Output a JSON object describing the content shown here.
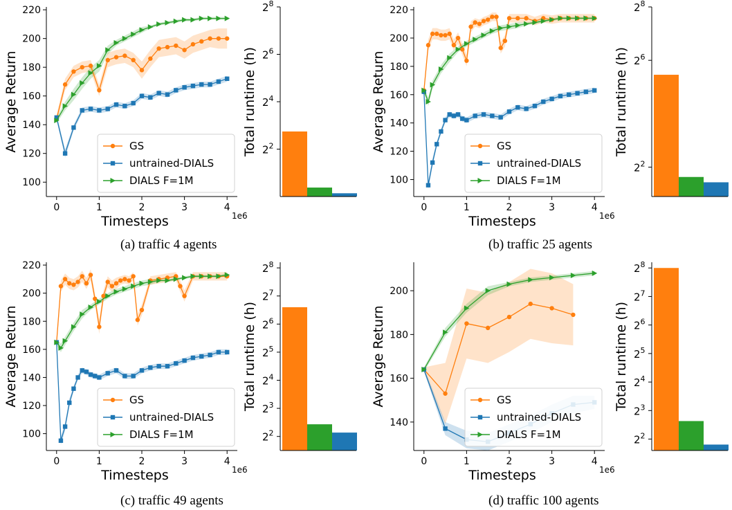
{
  "colors": {
    "gs": "#ff7f0e",
    "untrained": "#1f77b4",
    "dials": "#2ca02c"
  },
  "legend": [
    "GS",
    "untrained-DIALS",
    "DIALS F=1M"
  ],
  "xlabel": "Timesteps",
  "ylabel": "Average Return",
  "bar_ylabel": "Total runtime (h)",
  "x_multiplier": "1e6",
  "chart_data": [
    {
      "type": "line",
      "caption": "(a) traffic 4 agents",
      "xlim": [
        0,
        4
      ],
      "ylim": [
        90,
        222
      ],
      "xticks": [
        0,
        1,
        2,
        3,
        4
      ],
      "yticks": [
        100,
        120,
        140,
        160,
        180,
        200,
        220
      ],
      "series": [
        {
          "name": "GS",
          "color_key": "gs",
          "marker": "circle",
          "x": [
            0,
            0.2,
            0.4,
            0.6,
            0.8,
            1.0,
            1.2,
            1.4,
            1.6,
            1.8,
            2.0,
            2.2,
            2.4,
            2.6,
            2.8,
            3.0,
            3.2,
            3.4,
            3.6,
            3.8,
            4.0
          ],
          "y": [
            144,
            168,
            177,
            180,
            181,
            164,
            185,
            187,
            188,
            185,
            178,
            186,
            193,
            194,
            195,
            192,
            196,
            198,
            200,
            200,
            200
          ],
          "band": [
            3,
            4,
            4,
            4,
            4,
            4,
            5,
            5,
            5,
            5,
            6,
            6,
            6,
            6,
            6,
            6,
            6,
            6,
            6,
            7,
            7
          ]
        },
        {
          "name": "untrained-DIALS",
          "color_key": "untrained",
          "marker": "square",
          "x": [
            0,
            0.2,
            0.4,
            0.6,
            0.8,
            1.0,
            1.2,
            1.4,
            1.6,
            1.8,
            2.0,
            2.2,
            2.4,
            2.6,
            2.8,
            3.0,
            3.2,
            3.4,
            3.6,
            3.8,
            4.0
          ],
          "y": [
            145,
            120,
            138,
            150,
            151,
            150,
            151,
            154,
            153,
            155,
            160,
            159,
            162,
            161,
            164,
            166,
            167,
            168,
            168,
            170,
            172
          ],
          "band": [
            2,
            3,
            2,
            2,
            2,
            2,
            2,
            2,
            2,
            2,
            2,
            2,
            2,
            2,
            2,
            2,
            2,
            2,
            2,
            2,
            2
          ]
        },
        {
          "name": "DIALS F=1M",
          "color_key": "dials",
          "marker": "triangle",
          "x": [
            0,
            0.2,
            0.4,
            0.6,
            0.8,
            1.0,
            1.2,
            1.4,
            1.6,
            1.8,
            2.0,
            2.2,
            2.4,
            2.6,
            2.8,
            3.0,
            3.2,
            3.4,
            3.6,
            3.8,
            4.0
          ],
          "y": [
            143,
            153,
            161,
            169,
            176,
            181,
            192,
            197,
            200,
            203,
            206,
            208,
            210,
            211,
            212,
            213,
            213,
            214,
            214,
            214,
            214
          ],
          "band": [
            2,
            3,
            4,
            4,
            4,
            4,
            3,
            2,
            2,
            2,
            2,
            1,
            1,
            1,
            1,
            1,
            1,
            1,
            1,
            1,
            1
          ]
        }
      ]
    },
    {
      "type": "bar",
      "ylabel": "Total runtime (h)",
      "log_base": 2,
      "ylim_exp": [
        0,
        8
      ],
      "ytick_exponents": [
        2,
        4,
        6,
        8
      ],
      "values": [
        6.7,
        1.3,
        1.1
      ],
      "color_keys": [
        "gs",
        "dials",
        "untrained"
      ]
    },
    {
      "type": "line",
      "caption": "(b) traffic 25 agents",
      "xlim": [
        0,
        4
      ],
      "ylim": [
        88,
        222
      ],
      "xticks": [
        0,
        1,
        2,
        3,
        4
      ],
      "yticks": [
        100,
        120,
        140,
        160,
        180,
        200,
        220
      ],
      "series": [
        {
          "name": "GS",
          "color_key": "gs",
          "marker": "circle",
          "x": [
            0,
            0.1,
            0.2,
            0.3,
            0.4,
            0.5,
            0.6,
            0.7,
            0.8,
            0.9,
            1.0,
            1.1,
            1.2,
            1.3,
            1.4,
            1.5,
            1.6,
            1.7,
            1.8,
            1.9,
            2.0,
            2.2,
            2.4,
            2.6,
            2.8,
            3.0,
            3.2,
            3.4,
            3.6,
            3.8,
            4.0
          ],
          "y": [
            163,
            195,
            203,
            203,
            202,
            202,
            203,
            195,
            200,
            192,
            184,
            208,
            211,
            210,
            212,
            213,
            215,
            215,
            193,
            198,
            214,
            214,
            214,
            212,
            214,
            213,
            214,
            214,
            214,
            214,
            214
          ],
          "band": [
            3,
            4,
            4,
            4,
            4,
            4,
            4,
            4,
            4,
            4,
            4,
            4,
            3,
            3,
            3,
            3,
            3,
            3,
            4,
            4,
            3,
            3,
            3,
            3,
            3,
            3,
            3,
            3,
            3,
            3,
            3
          ]
        },
        {
          "name": "untrained-DIALS",
          "color_key": "untrained",
          "marker": "square",
          "x": [
            0,
            0.1,
            0.2,
            0.3,
            0.4,
            0.5,
            0.6,
            0.7,
            0.8,
            0.9,
            1.0,
            1.2,
            1.4,
            1.6,
            1.8,
            2.0,
            2.2,
            2.4,
            2.6,
            2.8,
            3.0,
            3.2,
            3.4,
            3.6,
            3.8,
            4.0
          ],
          "y": [
            162,
            96,
            112,
            125,
            134,
            142,
            146,
            145,
            146,
            143,
            142,
            145,
            146,
            145,
            144,
            148,
            151,
            150,
            152,
            155,
            157,
            159,
            160,
            161,
            162,
            163
          ],
          "band": [
            2,
            3,
            3,
            2,
            2,
            2,
            2,
            2,
            2,
            2,
            2,
            2,
            2,
            2,
            2,
            2,
            2,
            2,
            2,
            2,
            2,
            2,
            2,
            2,
            2,
            2
          ]
        },
        {
          "name": "DIALS F=1M",
          "color_key": "dials",
          "marker": "triangle",
          "x": [
            0,
            0.1,
            0.2,
            0.4,
            0.6,
            0.8,
            1.0,
            1.2,
            1.4,
            1.6,
            1.8,
            2.0,
            2.2,
            2.4,
            2.6,
            2.8,
            3.0,
            3.2,
            3.4,
            3.6,
            3.8,
            4.0
          ],
          "y": [
            163,
            155,
            167,
            178,
            186,
            192,
            196,
            199,
            202,
            205,
            207,
            208,
            209,
            210,
            211,
            212,
            213,
            214,
            214,
            214,
            214,
            214
          ],
          "band": [
            2,
            3,
            3,
            3,
            3,
            2,
            2,
            2,
            2,
            2,
            2,
            2,
            2,
            1,
            1,
            1,
            1,
            1,
            1,
            1,
            1,
            1
          ]
        }
      ]
    },
    {
      "type": "bar",
      "ylabel": "Total runtime (h)",
      "log_base": 2,
      "ylim_exp": [
        0.9,
        8
      ],
      "ytick_exponents": [
        2,
        6,
        8
      ],
      "values": [
        44,
        3.1,
        2.7
      ],
      "color_keys": [
        "gs",
        "dials",
        "untrained"
      ]
    },
    {
      "type": "line",
      "caption": "(c) traffic 49 agents",
      "xlim": [
        0,
        4
      ],
      "ylim": [
        88,
        222
      ],
      "xticks": [
        0,
        1,
        2,
        3,
        4
      ],
      "yticks": [
        100,
        120,
        140,
        160,
        180,
        200,
        220
      ],
      "series": [
        {
          "name": "GS",
          "color_key": "gs",
          "marker": "circle",
          "x": [
            0,
            0.1,
            0.2,
            0.3,
            0.4,
            0.5,
            0.6,
            0.7,
            0.8,
            0.9,
            1.0,
            1.1,
            1.2,
            1.3,
            1.4,
            1.5,
            1.6,
            1.7,
            1.8,
            1.9,
            2.0,
            2.2,
            2.4,
            2.6,
            2.8,
            2.9,
            3.0,
            3.2,
            3.4,
            3.6,
            3.8,
            4.0
          ],
          "y": [
            165,
            205,
            210,
            207,
            206,
            208,
            212,
            207,
            213,
            196,
            176,
            198,
            208,
            205,
            207,
            209,
            210,
            209,
            212,
            181,
            188,
            209,
            210,
            211,
            212,
            205,
            198,
            212,
            212,
            212,
            212,
            212
          ],
          "band": [
            3,
            4,
            4,
            4,
            4,
            4,
            4,
            4,
            4,
            4,
            5,
            4,
            4,
            4,
            4,
            3,
            3,
            3,
            3,
            4,
            4,
            3,
            3,
            3,
            3,
            4,
            4,
            3,
            3,
            3,
            3,
            3
          ]
        },
        {
          "name": "untrained-DIALS",
          "color_key": "untrained",
          "marker": "square",
          "x": [
            0,
            0.1,
            0.2,
            0.3,
            0.4,
            0.5,
            0.6,
            0.7,
            0.8,
            0.9,
            1.0,
            1.2,
            1.4,
            1.6,
            1.8,
            2.0,
            2.2,
            2.4,
            2.6,
            2.8,
            3.0,
            3.2,
            3.4,
            3.6,
            3.8,
            4.0
          ],
          "y": [
            165,
            95,
            105,
            122,
            132,
            140,
            145,
            144,
            142,
            141,
            140,
            143,
            145,
            141,
            141,
            145,
            147,
            148,
            148,
            150,
            152,
            154,
            155,
            156,
            158,
            158
          ],
          "band": [
            2,
            3,
            3,
            3,
            2,
            2,
            2,
            2,
            2,
            2,
            2,
            2,
            2,
            2,
            2,
            2,
            2,
            2,
            2,
            2,
            2,
            2,
            2,
            2,
            2,
            2
          ]
        },
        {
          "name": "DIALS F=1M",
          "color_key": "dials",
          "marker": "triangle",
          "x": [
            0,
            0.1,
            0.2,
            0.4,
            0.6,
            0.8,
            1.0,
            1.2,
            1.4,
            1.6,
            1.8,
            2.0,
            2.2,
            2.4,
            2.6,
            2.8,
            3.0,
            3.2,
            3.4,
            3.6,
            3.8,
            4.0
          ],
          "y": [
            165,
            161,
            166,
            176,
            185,
            190,
            194,
            198,
            201,
            203,
            205,
            207,
            208,
            209,
            209,
            210,
            211,
            212,
            212,
            212,
            212,
            213
          ],
          "band": [
            2,
            3,
            3,
            3,
            3,
            2,
            2,
            2,
            2,
            2,
            2,
            2,
            2,
            1,
            1,
            1,
            1,
            1,
            1,
            1,
            1,
            1
          ]
        }
      ]
    },
    {
      "type": "bar",
      "ylabel": "Total runtime (h)",
      "log_base": 2,
      "ylim_exp": [
        1.5,
        8.2
      ],
      "ytick_exponents": [
        2,
        3,
        4,
        5,
        6,
        7,
        8
      ],
      "values": [
        97,
        5.4,
        4.4
      ],
      "color_keys": [
        "gs",
        "dials",
        "untrained"
      ]
    },
    {
      "type": "line",
      "caption": "(d) traffic 100 agents",
      "xlim": [
        0,
        4
      ],
      "ylim": [
        127,
        213
      ],
      "xticks": [
        0,
        1,
        2,
        3,
        4
      ],
      "yticks": [
        140,
        160,
        180,
        200
      ],
      "series": [
        {
          "name": "GS",
          "color_key": "gs",
          "marker": "circle",
          "x": [
            0,
            0.5,
            1.0,
            1.5,
            2.0,
            2.5,
            3.0,
            3.5
          ],
          "y": [
            164,
            153,
            185,
            183,
            188,
            194,
            192,
            189
          ],
          "band": [
            1,
            14,
            16,
            16,
            16,
            16,
            16,
            14
          ]
        },
        {
          "name": "untrained-DIALS",
          "color_key": "untrained",
          "marker": "square",
          "x": [
            0,
            0.5,
            1.0,
            1.5,
            2.0,
            2.5,
            3.0,
            3.5,
            4.0
          ],
          "y": [
            164,
            137,
            132,
            131,
            135,
            139,
            144,
            148,
            149
          ],
          "band": [
            1,
            3,
            4,
            4,
            4,
            4,
            4,
            4,
            3
          ]
        },
        {
          "name": "DIALS F=1M",
          "color_key": "dials",
          "marker": "triangle",
          "x": [
            0,
            0.5,
            1.0,
            1.5,
            2.0,
            2.5,
            3.0,
            3.5,
            4.0
          ],
          "y": [
            164,
            181,
            192,
            200,
            203,
            205,
            206,
            207,
            208
          ],
          "band": [
            1,
            2,
            2,
            2,
            1,
            1,
            1,
            1,
            1
          ]
        }
      ]
    },
    {
      "type": "bar",
      "ylabel": "Total runtime (h)",
      "log_base": 2,
      "ylim_exp": [
        1.6,
        8.2
      ],
      "ytick_exponents": [
        2,
        3,
        4,
        5,
        6,
        7,
        8
      ],
      "values": [
        256,
        6.2,
        3.5
      ],
      "color_keys": [
        "gs",
        "dials",
        "untrained"
      ]
    }
  ]
}
